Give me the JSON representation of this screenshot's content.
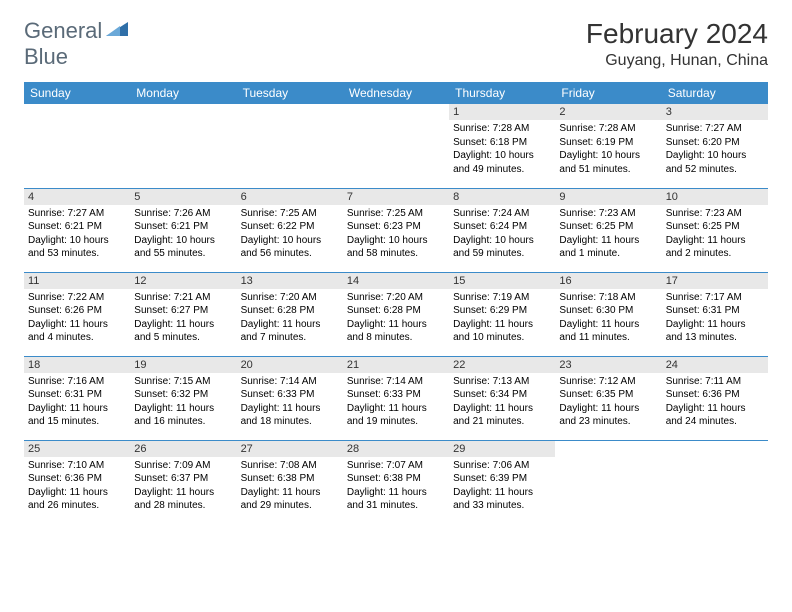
{
  "brand": {
    "part1": "General",
    "part2": "Blue"
  },
  "title": "February 2024",
  "location": "Guyang, Hunan, China",
  "colors": {
    "header_bg": "#3b8bc9",
    "header_text": "#ffffff",
    "day_shade": "#e8e8e8",
    "rule": "#3b8bc9",
    "logo_text": "#5a6a78",
    "logo_shape": "#2f6fa8"
  },
  "weekdays": [
    "Sunday",
    "Monday",
    "Tuesday",
    "Wednesday",
    "Thursday",
    "Friday",
    "Saturday"
  ],
  "weeks": [
    [
      null,
      null,
      null,
      null,
      {
        "n": "1",
        "sr": "7:28 AM",
        "ss": "6:18 PM",
        "dl": "10 hours and 49 minutes."
      },
      {
        "n": "2",
        "sr": "7:28 AM",
        "ss": "6:19 PM",
        "dl": "10 hours and 51 minutes."
      },
      {
        "n": "3",
        "sr": "7:27 AM",
        "ss": "6:20 PM",
        "dl": "10 hours and 52 minutes."
      }
    ],
    [
      {
        "n": "4",
        "sr": "7:27 AM",
        "ss": "6:21 PM",
        "dl": "10 hours and 53 minutes."
      },
      {
        "n": "5",
        "sr": "7:26 AM",
        "ss": "6:21 PM",
        "dl": "10 hours and 55 minutes."
      },
      {
        "n": "6",
        "sr": "7:25 AM",
        "ss": "6:22 PM",
        "dl": "10 hours and 56 minutes."
      },
      {
        "n": "7",
        "sr": "7:25 AM",
        "ss": "6:23 PM",
        "dl": "10 hours and 58 minutes."
      },
      {
        "n": "8",
        "sr": "7:24 AM",
        "ss": "6:24 PM",
        "dl": "10 hours and 59 minutes."
      },
      {
        "n": "9",
        "sr": "7:23 AM",
        "ss": "6:25 PM",
        "dl": "11 hours and 1 minute."
      },
      {
        "n": "10",
        "sr": "7:23 AM",
        "ss": "6:25 PM",
        "dl": "11 hours and 2 minutes."
      }
    ],
    [
      {
        "n": "11",
        "sr": "7:22 AM",
        "ss": "6:26 PM",
        "dl": "11 hours and 4 minutes."
      },
      {
        "n": "12",
        "sr": "7:21 AM",
        "ss": "6:27 PM",
        "dl": "11 hours and 5 minutes."
      },
      {
        "n": "13",
        "sr": "7:20 AM",
        "ss": "6:28 PM",
        "dl": "11 hours and 7 minutes."
      },
      {
        "n": "14",
        "sr": "7:20 AM",
        "ss": "6:28 PM",
        "dl": "11 hours and 8 minutes."
      },
      {
        "n": "15",
        "sr": "7:19 AM",
        "ss": "6:29 PM",
        "dl": "11 hours and 10 minutes."
      },
      {
        "n": "16",
        "sr": "7:18 AM",
        "ss": "6:30 PM",
        "dl": "11 hours and 11 minutes."
      },
      {
        "n": "17",
        "sr": "7:17 AM",
        "ss": "6:31 PM",
        "dl": "11 hours and 13 minutes."
      }
    ],
    [
      {
        "n": "18",
        "sr": "7:16 AM",
        "ss": "6:31 PM",
        "dl": "11 hours and 15 minutes."
      },
      {
        "n": "19",
        "sr": "7:15 AM",
        "ss": "6:32 PM",
        "dl": "11 hours and 16 minutes."
      },
      {
        "n": "20",
        "sr": "7:14 AM",
        "ss": "6:33 PM",
        "dl": "11 hours and 18 minutes."
      },
      {
        "n": "21",
        "sr": "7:14 AM",
        "ss": "6:33 PM",
        "dl": "11 hours and 19 minutes."
      },
      {
        "n": "22",
        "sr": "7:13 AM",
        "ss": "6:34 PM",
        "dl": "11 hours and 21 minutes."
      },
      {
        "n": "23",
        "sr": "7:12 AM",
        "ss": "6:35 PM",
        "dl": "11 hours and 23 minutes."
      },
      {
        "n": "24",
        "sr": "7:11 AM",
        "ss": "6:36 PM",
        "dl": "11 hours and 24 minutes."
      }
    ],
    [
      {
        "n": "25",
        "sr": "7:10 AM",
        "ss": "6:36 PM",
        "dl": "11 hours and 26 minutes."
      },
      {
        "n": "26",
        "sr": "7:09 AM",
        "ss": "6:37 PM",
        "dl": "11 hours and 28 minutes."
      },
      {
        "n": "27",
        "sr": "7:08 AM",
        "ss": "6:38 PM",
        "dl": "11 hours and 29 minutes."
      },
      {
        "n": "28",
        "sr": "7:07 AM",
        "ss": "6:38 PM",
        "dl": "11 hours and 31 minutes."
      },
      {
        "n": "29",
        "sr": "7:06 AM",
        "ss": "6:39 PM",
        "dl": "11 hours and 33 minutes."
      },
      null,
      null
    ]
  ],
  "labels": {
    "sunrise": "Sunrise:",
    "sunset": "Sunset:",
    "daylight": "Daylight:"
  }
}
